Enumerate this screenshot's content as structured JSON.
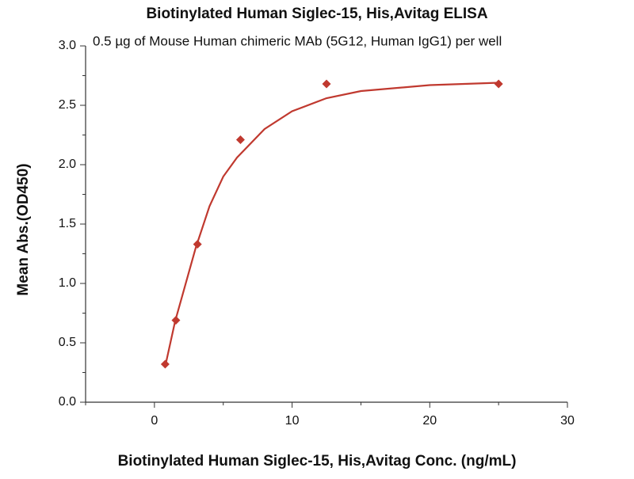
{
  "chart_data": {
    "type": "scatter",
    "title": "Biotinylated Human Siglec-15, His,Avitag ELISA",
    "subtitle": "0.5 µg of Mouse Human chimeric MAb (5G12, Human IgG1) per well",
    "x_label": "Biotinylated Human Siglec-15, His,Avitag Conc. (ng/mL)",
    "y_label": "Mean Abs.(OD450)",
    "series": [
      {
        "kind": "points",
        "color": "#c0392f",
        "x": [
          0.78,
          1.56,
          3.125,
          6.25,
          12.5,
          25
        ],
        "values": [
          0.32,
          0.69,
          1.33,
          2.21,
          2.68,
          2.68
        ]
      },
      {
        "kind": "fit",
        "color": "#c0392f",
        "x": [
          0.78,
          1.5,
          3,
          4,
          5,
          6,
          8,
          10,
          12.5,
          15,
          20,
          25
        ],
        "values": [
          0.3,
          0.68,
          1.3,
          1.65,
          1.9,
          2.06,
          2.3,
          2.45,
          2.56,
          2.62,
          2.67,
          2.69
        ]
      }
    ],
    "xlim": [
      -5,
      30
    ],
    "xticks": [
      0,
      10,
      20,
      30
    ],
    "xminorticks": [
      -5,
      5,
      15,
      25
    ],
    "ylim": [
      0,
      3
    ],
    "yticks": [
      {
        "value": 0,
        "label": "0.0"
      },
      0.5,
      {
        "value": 1,
        "label": "1.0"
      },
      1.5,
      {
        "value": 2,
        "label": "2.0"
      },
      2.5,
      {
        "value": 3,
        "label": "3.0"
      }
    ],
    "yminorticks": [
      0.25,
      0.75,
      1.25,
      1.75,
      2.25,
      2.75
    ]
  }
}
